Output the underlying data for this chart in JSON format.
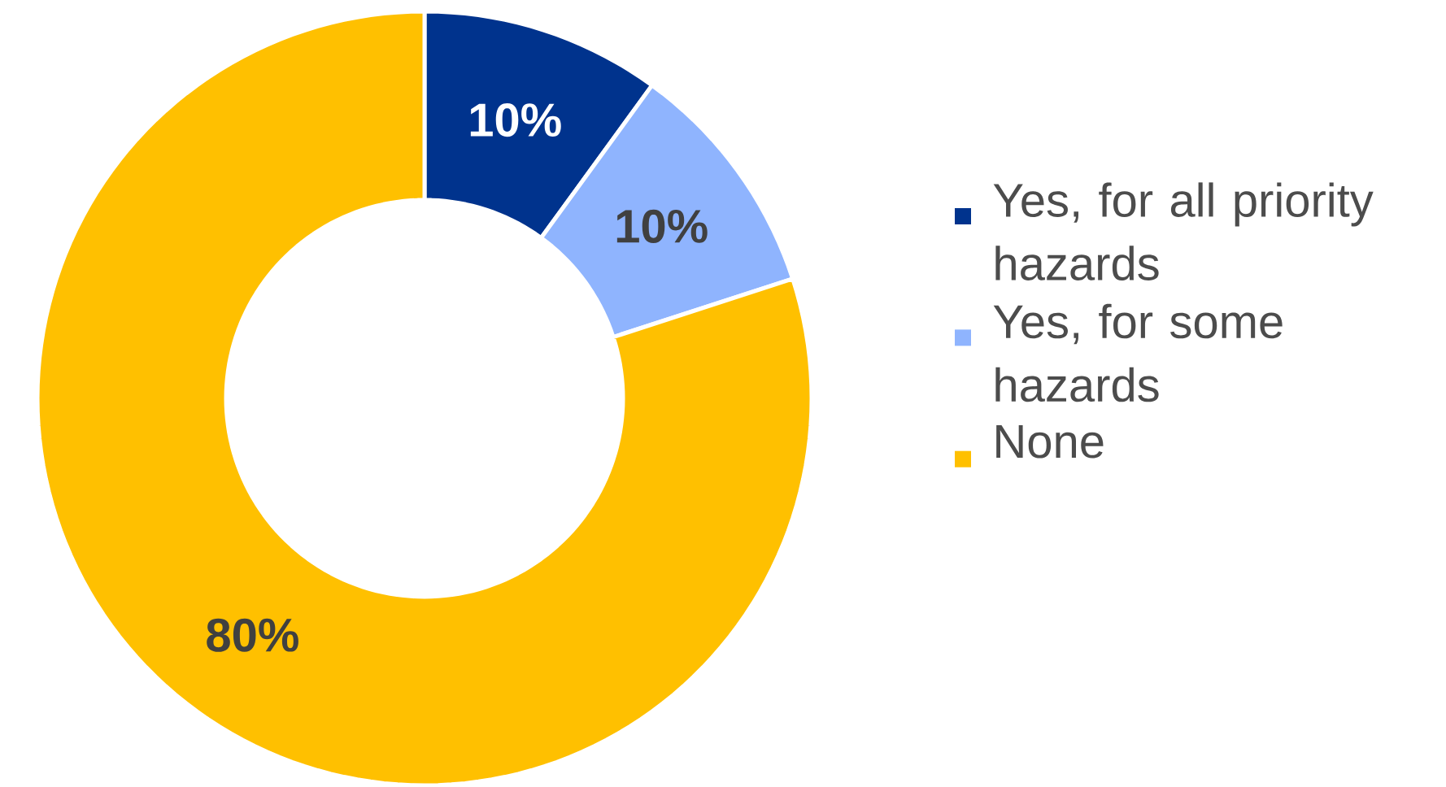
{
  "chart_data": {
    "type": "donut",
    "categories": [
      "Yes, for all priority hazards",
      "Yes, for some hazards",
      "None"
    ],
    "values": [
      10,
      10,
      80
    ],
    "colors": [
      "#00338d",
      "#8fb4fe",
      "#ffc000"
    ],
    "value_labels": [
      "10%",
      "10%",
      "80%"
    ],
    "legend": "right"
  }
}
